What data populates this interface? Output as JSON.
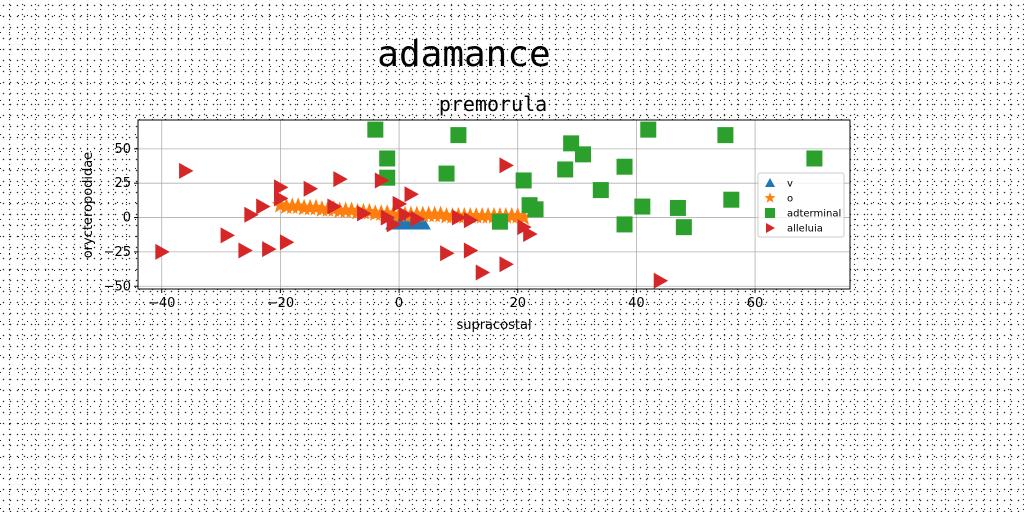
{
  "chart_data": {
    "type": "scatter",
    "suptitle": "adamance",
    "title": "premorula",
    "xlabel": "supracostal",
    "ylabel": "orycteropodidae",
    "xlim": [
      -44,
      76
    ],
    "ylim": [
      -52,
      71
    ],
    "xticks": [
      -40,
      -20,
      0,
      20,
      40,
      60
    ],
    "yticks": [
      -50,
      -25,
      0,
      25,
      50
    ],
    "grid": true,
    "legend_position": "right",
    "series": [
      {
        "name": "v",
        "marker": "triangle-up",
        "color": "#1f77b4",
        "points": [
          [
            -1,
            -4
          ],
          [
            0,
            -4
          ],
          [
            0.5,
            -4
          ],
          [
            1,
            -4
          ],
          [
            1.5,
            -4
          ],
          [
            2,
            -4
          ],
          [
            2.5,
            -4
          ],
          [
            3,
            -4
          ],
          [
            3.5,
            -4
          ],
          [
            4,
            -4
          ],
          [
            -0.5,
            -3
          ],
          [
            1.2,
            -3.5
          ],
          [
            2.8,
            -3.2
          ]
        ]
      },
      {
        "name": "o",
        "marker": "star",
        "color": "#ff7f0e",
        "points": [
          [
            -20,
            9
          ],
          [
            -19,
            8
          ],
          [
            -18,
            8
          ],
          [
            -17,
            8
          ],
          [
            -16,
            7
          ],
          [
            -15,
            7
          ],
          [
            -14,
            7
          ],
          [
            -13,
            6
          ],
          [
            -12,
            6
          ],
          [
            -11,
            6
          ],
          [
            -10,
            5
          ],
          [
            -9,
            5
          ],
          [
            -8,
            5
          ],
          [
            -7,
            4
          ],
          [
            -6,
            4
          ],
          [
            -5,
            4
          ],
          [
            -4,
            3
          ],
          [
            -3,
            3
          ],
          [
            -2,
            3
          ],
          [
            -1,
            2
          ],
          [
            0,
            2
          ],
          [
            1,
            2
          ],
          [
            2,
            2
          ],
          [
            3,
            2
          ],
          [
            4,
            2
          ],
          [
            5,
            2
          ],
          [
            6,
            2
          ],
          [
            7,
            2
          ],
          [
            8,
            1
          ],
          [
            9,
            1
          ],
          [
            10,
            1
          ],
          [
            11,
            1
          ],
          [
            12,
            1
          ],
          [
            13,
            1
          ],
          [
            14,
            1
          ],
          [
            15,
            1
          ],
          [
            16,
            1
          ],
          [
            17,
            1
          ],
          [
            18,
            1
          ],
          [
            19,
            1
          ],
          [
            20,
            1
          ],
          [
            21,
            0
          ]
        ]
      },
      {
        "name": "adterminal",
        "marker": "square",
        "color": "#2ca02c",
        "points": [
          [
            -4,
            64
          ],
          [
            10,
            60
          ],
          [
            42,
            64
          ],
          [
            55,
            60
          ],
          [
            29,
            54
          ],
          [
            31,
            46
          ],
          [
            -2,
            43
          ],
          [
            70,
            43
          ],
          [
            8,
            32
          ],
          [
            28,
            35
          ],
          [
            38,
            37
          ],
          [
            -2,
            29
          ],
          [
            21,
            27
          ],
          [
            34,
            20
          ],
          [
            56,
            13
          ],
          [
            41,
            8
          ],
          [
            22,
            9
          ],
          [
            47,
            7
          ],
          [
            23,
            6
          ],
          [
            38,
            -5
          ],
          [
            48,
            -7
          ],
          [
            17,
            -3
          ]
        ]
      },
      {
        "name": "alleluia",
        "marker": "triangle-right",
        "color": "#d62728",
        "points": [
          [
            -36,
            34
          ],
          [
            18,
            38
          ],
          [
            -20,
            22
          ],
          [
            -15,
            21
          ],
          [
            -10,
            28
          ],
          [
            -3,
            27
          ],
          [
            2,
            17
          ],
          [
            -20,
            14
          ],
          [
            -23,
            8
          ],
          [
            -25,
            2
          ],
          [
            -11,
            8
          ],
          [
            -6,
            3
          ],
          [
            0,
            10
          ],
          [
            1,
            2
          ],
          [
            -2,
            0
          ],
          [
            3,
            -1
          ],
          [
            -1,
            -5
          ],
          [
            10,
            0
          ],
          [
            12,
            -2
          ],
          [
            21,
            -7
          ],
          [
            22,
            -12
          ],
          [
            -29,
            -13
          ],
          [
            -19,
            -18
          ],
          [
            -22,
            -23
          ],
          [
            -26,
            -24
          ],
          [
            -40,
            -25
          ],
          [
            8,
            -26
          ],
          [
            12,
            -24
          ],
          [
            18,
            -34
          ],
          [
            14,
            -40
          ],
          [
            44,
            -46
          ]
        ]
      }
    ]
  }
}
